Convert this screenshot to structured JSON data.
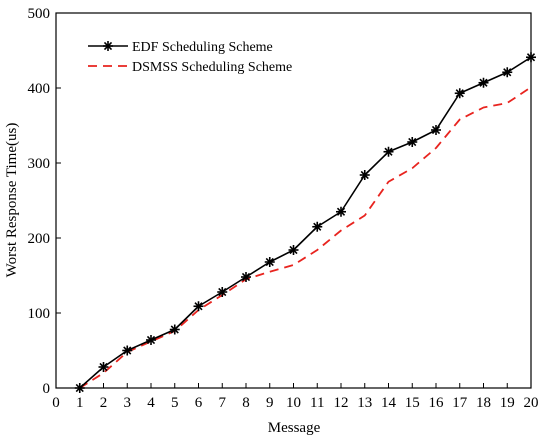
{
  "chart_data": {
    "type": "line",
    "xlabel": "Message",
    "ylabel": "Worst Response Time(us)",
    "xlim": [
      0,
      20
    ],
    "ylim": [
      0,
      500
    ],
    "xticks": [
      "0",
      "1",
      "2",
      "3",
      "4",
      "5",
      "6",
      "7",
      "8",
      "9",
      "10",
      "11",
      "12",
      "13",
      "14",
      "15",
      "16",
      "17",
      "18",
      "19",
      "20"
    ],
    "yticks": [
      "0",
      "100",
      "200",
      "300",
      "400",
      "500"
    ],
    "grid": false,
    "legend_position": "top-left",
    "series": [
      {
        "name": "EDF Scheduling Scheme",
        "color": "#000000",
        "line_style": "solid",
        "marker": "asterisk",
        "x": [
          1,
          2,
          3,
          4,
          5,
          6,
          7,
          8,
          9,
          10,
          11,
          12,
          13,
          14,
          15,
          16,
          17,
          18,
          19,
          20
        ],
        "values": [
          0,
          28,
          50,
          64,
          78,
          109,
          128,
          148,
          168,
          184,
          215,
          235,
          284,
          315,
          328,
          344,
          393,
          407,
          421,
          441
        ]
      },
      {
        "name": "DSMSS Scheduling Scheme",
        "color": "#e8241f",
        "line_style": "dashed",
        "marker": "none",
        "x": [
          1,
          2,
          3,
          4,
          5,
          6,
          7,
          8,
          9,
          10,
          11,
          12,
          13,
          14,
          15,
          16,
          17,
          18,
          19,
          20
        ],
        "values": [
          0,
          20,
          48,
          62,
          76,
          104,
          124,
          145,
          155,
          164,
          184,
          210,
          230,
          275,
          293,
          320,
          358,
          374,
          380,
          401
        ]
      }
    ]
  }
}
